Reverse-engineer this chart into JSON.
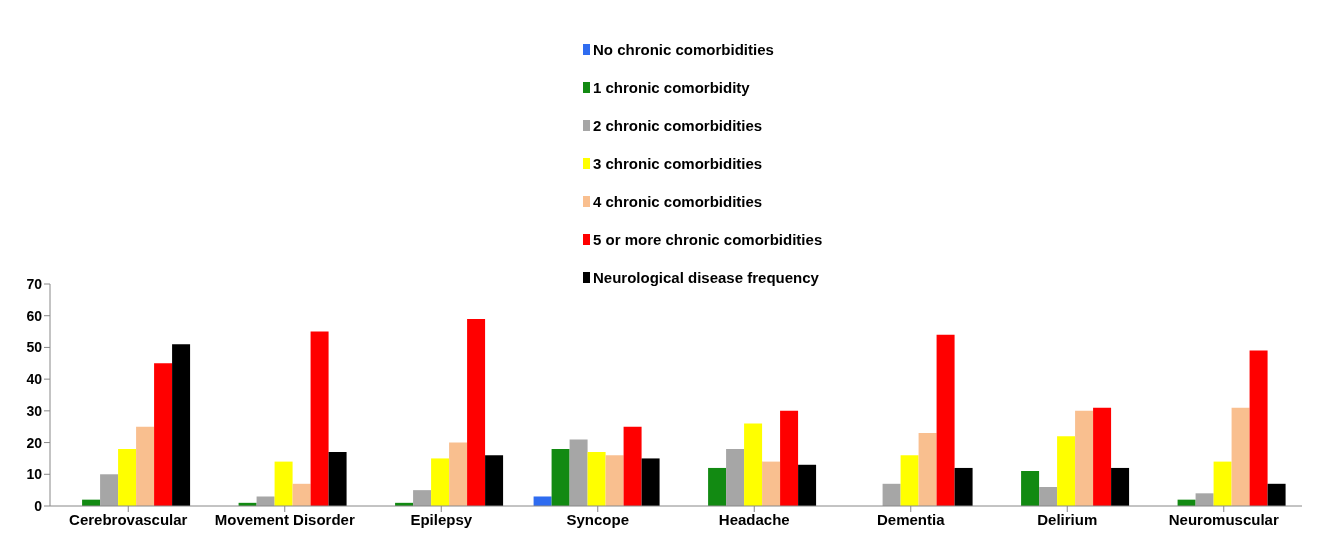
{
  "chart_data": {
    "type": "bar",
    "categories": [
      "Cerebrovascular",
      "Movement Disorder",
      "Epilepsy",
      "Syncope",
      "Headache",
      "Dementia",
      "Delirium",
      "Neuromuscular"
    ],
    "series": [
      {
        "name": "No chronic comorbidities",
        "color": "#2f6cf0",
        "values": [
          0,
          0,
          0,
          3,
          0,
          0,
          0,
          0
        ]
      },
      {
        "name": "1 chronic comorbidity",
        "color": "#128a12",
        "values": [
          2,
          1,
          1,
          18,
          12,
          0,
          11,
          2
        ]
      },
      {
        "name": "2 chronic comorbidities",
        "color": "#a6a6a6",
        "values": [
          10,
          3,
          5,
          21,
          18,
          7,
          6,
          4
        ]
      },
      {
        "name": "3 chronic comorbidities",
        "color": "#ffff00",
        "values": [
          18,
          14,
          15,
          17,
          26,
          16,
          22,
          14
        ]
      },
      {
        "name": "4 chronic comorbidities",
        "color": "#f9bf8f",
        "values": [
          25,
          7,
          20,
          16,
          14,
          23,
          30,
          31
        ]
      },
      {
        "name": "5 or more chronic comorbidities",
        "color": "#ff0000",
        "values": [
          45,
          55,
          59,
          25,
          30,
          54,
          31,
          49
        ]
      },
      {
        "name": "Neurological disease frequency",
        "color": "#000000",
        "values": [
          51,
          17,
          16,
          15,
          13,
          12,
          12,
          7
        ]
      }
    ],
    "ylim": [
      0,
      70
    ],
    "yticks": [
      0,
      10,
      20,
      30,
      40,
      50,
      60,
      70
    ],
    "grid": false,
    "legend": "top"
  }
}
